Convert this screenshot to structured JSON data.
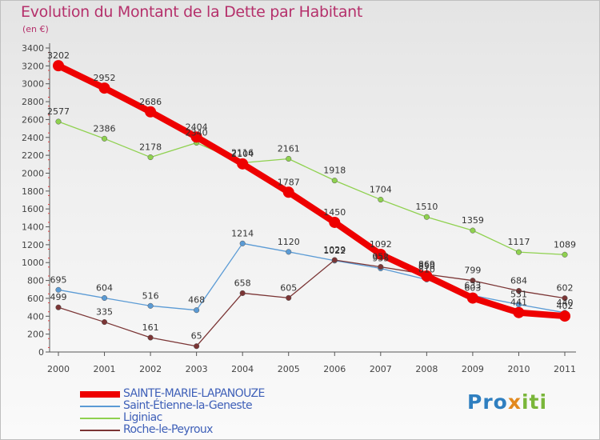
{
  "title": "Evolution du Montant de la Dette par Habitant",
  "subtitle": "(en €)",
  "logo": {
    "part1": "Pro",
    "part2": "x",
    "part3": "iti"
  },
  "chart_data": {
    "type": "line",
    "title": "Evolution du Montant de la Dette par Habitant",
    "ylabel": "(en €)",
    "xlabel": "",
    "categories": [
      "2000",
      "2001",
      "2002",
      "2003",
      "2004",
      "2005",
      "2006",
      "2007",
      "2008",
      "2009",
      "2010",
      "2011"
    ],
    "ylim": [
      0,
      3400
    ],
    "yticks": [
      0,
      200,
      400,
      600,
      800,
      1000,
      1200,
      1400,
      1600,
      1800,
      2000,
      2200,
      2400,
      2600,
      2800,
      3000,
      3200,
      3400
    ],
    "grid": false,
    "legend_position": "bottom-left",
    "series": [
      {
        "name": "SAINTE-MARIE-LAPANOUZE",
        "color": "#ee0000",
        "values": [
          3202,
          2952,
          2686,
          2404,
          2104,
          1787,
          1450,
          1092,
          850,
          603,
          441,
          402
        ]
      },
      {
        "name": "Saint-Étienne-la-Geneste",
        "color": "#5b9bd5",
        "values": [
          695,
          604,
          516,
          468,
          1214,
          1120,
          1022,
          935,
          810,
          633,
          531,
          440
        ]
      },
      {
        "name": "Liginiac",
        "color": "#8fd14f",
        "values": [
          2577,
          2386,
          2178,
          2340,
          2116,
          2161,
          1918,
          1704,
          1510,
          1359,
          1117,
          1089
        ]
      },
      {
        "name": "Roche-le-Peyroux",
        "color": "#7b3535",
        "values": [
          499,
          335,
          161,
          65,
          658,
          605,
          1029,
          952,
          869,
          799,
          684,
          602
        ]
      }
    ]
  }
}
